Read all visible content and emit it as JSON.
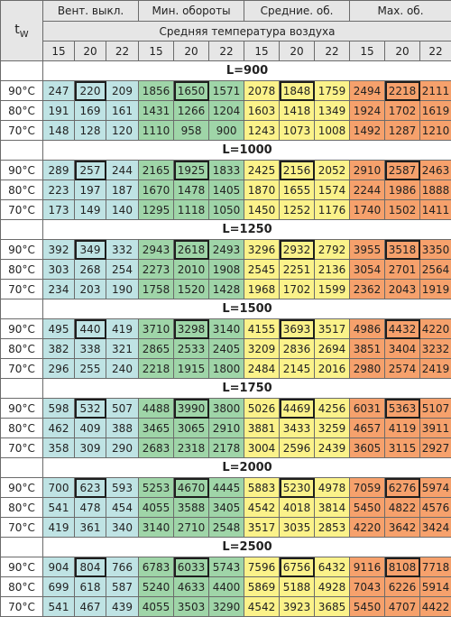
{
  "header": {
    "tw": "t",
    "tw_sub": "W",
    "groups": [
      "Вент. выкл.",
      "Мин. обороты",
      "Средние. об.",
      "Max. об."
    ],
    "subtitle": "Средняя температура воздуха",
    "temps": [
      "15",
      "20",
      "22",
      "15",
      "20",
      "22",
      "15",
      "20",
      "22",
      "15",
      "20",
      "22"
    ]
  },
  "sections": [
    {
      "title": "L=900",
      "rows": [
        {
          "label": "90°C",
          "values": [
            "247",
            "220",
            "209",
            "1856",
            "1650",
            "1571",
            "2078",
            "1848",
            "1759",
            "2494",
            "2218",
            "2111"
          ]
        },
        {
          "label": "80°C",
          "values": [
            "191",
            "169",
            "161",
            "1431",
            "1266",
            "1204",
            "1603",
            "1418",
            "1349",
            "1924",
            "1702",
            "1619"
          ]
        },
        {
          "label": "70°C",
          "values": [
            "148",
            "128",
            "120",
            "1110",
            "958",
            "900",
            "1243",
            "1073",
            "1008",
            "1492",
            "1287",
            "1210"
          ]
        }
      ]
    },
    {
      "title": "L=1000",
      "rows": [
        {
          "label": "90°C",
          "values": [
            "289",
            "257",
            "244",
            "2165",
            "1925",
            "1833",
            "2425",
            "2156",
            "2052",
            "2910",
            "2587",
            "2463"
          ]
        },
        {
          "label": "80°C",
          "values": [
            "223",
            "197",
            "187",
            "1670",
            "1478",
            "1405",
            "1870",
            "1655",
            "1574",
            "2244",
            "1986",
            "1888"
          ]
        },
        {
          "label": "70°C",
          "values": [
            "173",
            "149",
            "140",
            "1295",
            "1118",
            "1050",
            "1450",
            "1252",
            "1176",
            "1740",
            "1502",
            "1411"
          ]
        }
      ]
    },
    {
      "title": "L=1250",
      "rows": [
        {
          "label": "90°C",
          "values": [
            "392",
            "349",
            "332",
            "2943",
            "2618",
            "2493",
            "3296",
            "2932",
            "2792",
            "3955",
            "3518",
            "3350"
          ]
        },
        {
          "label": "80°C",
          "values": [
            "303",
            "268",
            "254",
            "2273",
            "2010",
            "1908",
            "2545",
            "2251",
            "2136",
            "3054",
            "2701",
            "2564"
          ]
        },
        {
          "label": "70°C",
          "values": [
            "234",
            "203",
            "190",
            "1758",
            "1520",
            "1428",
            "1968",
            "1702",
            "1599",
            "2362",
            "2043",
            "1919"
          ]
        }
      ]
    },
    {
      "title": "L=1500",
      "rows": [
        {
          "label": "90°C",
          "values": [
            "495",
            "440",
            "419",
            "3710",
            "3298",
            "3140",
            "4155",
            "3693",
            "3517",
            "4986",
            "4432",
            "4220"
          ]
        },
        {
          "label": "80°C",
          "values": [
            "382",
            "338",
            "321",
            "2865",
            "2533",
            "2405",
            "3209",
            "2836",
            "2694",
            "3851",
            "3404",
            "3232"
          ]
        },
        {
          "label": "70°C",
          "values": [
            "296",
            "255",
            "240",
            "2218",
            "1915",
            "1800",
            "2484",
            "2145",
            "2016",
            "2980",
            "2574",
            "2419"
          ]
        }
      ]
    },
    {
      "title": "L=1750",
      "rows": [
        {
          "label": "90°C",
          "values": [
            "598",
            "532",
            "507",
            "4488",
            "3990",
            "3800",
            "5026",
            "4469",
            "4256",
            "6031",
            "5363",
            "5107"
          ]
        },
        {
          "label": "80°C",
          "values": [
            "462",
            "409",
            "388",
            "3465",
            "3065",
            "2910",
            "3881",
            "3433",
            "3259",
            "4657",
            "4119",
            "3911"
          ]
        },
        {
          "label": "70°C",
          "values": [
            "358",
            "309",
            "290",
            "2683",
            "2318",
            "2178",
            "3004",
            "2596",
            "2439",
            "3605",
            "3115",
            "2927"
          ]
        }
      ]
    },
    {
      "title": "L=2000",
      "rows": [
        {
          "label": "90°C",
          "values": [
            "700",
            "623",
            "593",
            "5253",
            "4670",
            "4445",
            "5883",
            "5230",
            "4978",
            "7059",
            "6276",
            "5974"
          ]
        },
        {
          "label": "80°C",
          "values": [
            "541",
            "478",
            "454",
            "4055",
            "3588",
            "3405",
            "4542",
            "4018",
            "3814",
            "5450",
            "4822",
            "4576"
          ]
        },
        {
          "label": "70°C",
          "values": [
            "419",
            "361",
            "340",
            "3140",
            "2710",
            "2548",
            "3517",
            "3035",
            "2853",
            "4220",
            "3642",
            "3424"
          ]
        }
      ]
    },
    {
      "title": "L=2500",
      "rows": [
        {
          "label": "90°C",
          "values": [
            "904",
            "804",
            "766",
            "6783",
            "6033",
            "5743",
            "7596",
            "6756",
            "6432",
            "9116",
            "8108",
            "7718"
          ]
        },
        {
          "label": "80°C",
          "values": [
            "699",
            "618",
            "587",
            "5240",
            "4633",
            "4400",
            "5869",
            "5188",
            "4928",
            "7043",
            "6226",
            "5914"
          ]
        },
        {
          "label": "70°C",
          "values": [
            "541",
            "467",
            "439",
            "4055",
            "3503",
            "3290",
            "4542",
            "3923",
            "3685",
            "5450",
            "4707",
            "4422"
          ]
        }
      ]
    }
  ],
  "colors": {
    "group0": "#bfe3e4",
    "group1": "#9fd5a8",
    "group2": "#fbf28a",
    "group3": "#f6a16c",
    "header": "#e6e6e6"
  }
}
